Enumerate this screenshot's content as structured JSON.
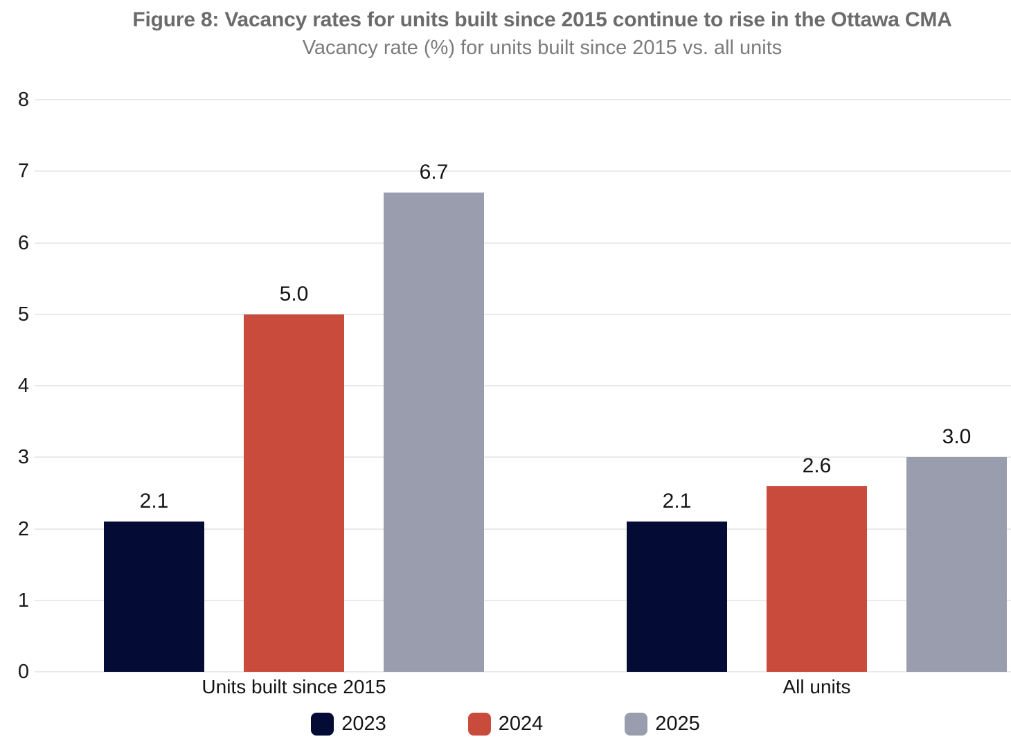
{
  "chart_data": {
    "type": "bar",
    "title": "Figure 8: Vacancy rates for units built since 2015 continue to rise in the Ottawa CMA",
    "subtitle": "Vacancy rate (%) for units built since 2015 vs. all units",
    "categories": [
      "Units built since 2015",
      "All units"
    ],
    "series": [
      {
        "name": "2023",
        "color": "#040b34",
        "values": [
          2.1,
          2.1
        ],
        "labels": [
          "2.1",
          "2.1"
        ]
      },
      {
        "name": "2024",
        "color": "#c94b3c",
        "values": [
          5.0,
          2.6
        ],
        "labels": [
          "5.0",
          "2.6"
        ]
      },
      {
        "name": "2025",
        "color": "#9a9dae",
        "values": [
          6.7,
          3.0
        ],
        "labels": [
          "6.7",
          "3.0"
        ]
      }
    ],
    "xlabel": "",
    "ylabel": "",
    "ylim": [
      0,
      8
    ],
    "yticks": [
      "0",
      "1",
      "2",
      "3",
      "4",
      "5",
      "6",
      "7",
      "8"
    ],
    "grid": "horizontal",
    "legend_position": "bottom",
    "colors": {
      "grid": "#eaeaea",
      "title_text": "#6b6b6b",
      "subtitle_text": "#7b7b7b",
      "label_text": "#141414",
      "background": "#ffffff"
    }
  }
}
